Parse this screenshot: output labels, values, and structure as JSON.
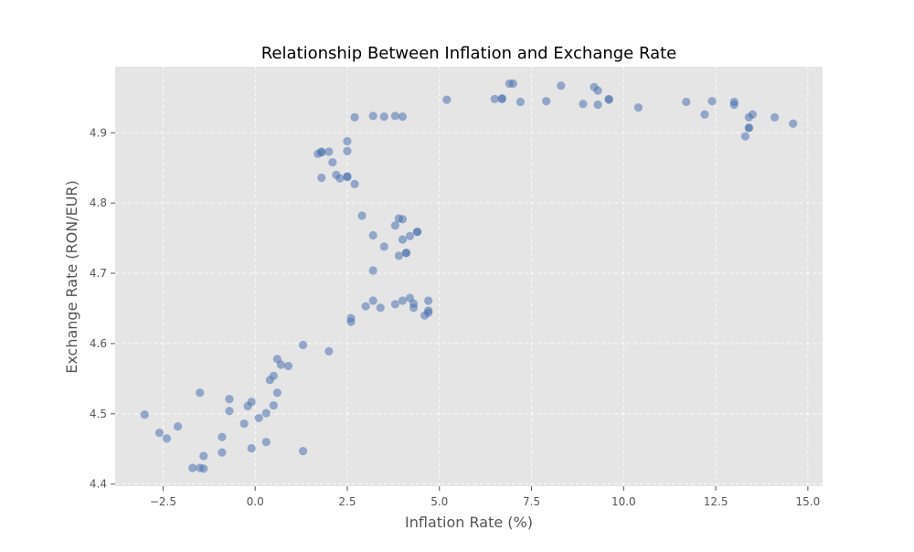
{
  "chart_data": {
    "type": "scatter",
    "title": "Relationship Between Inflation and Exchange Rate",
    "xlabel": "Inflation Rate (%)",
    "ylabel": "Exchange Rate (RON/EUR)",
    "xlim": [
      -3.8,
      15.4
    ],
    "ylim": [
      4.397,
      4.994
    ],
    "xticks": [
      -2.5,
      0.0,
      2.5,
      5.0,
      7.5,
      10.0,
      12.5,
      15.0
    ],
    "xtick_labels": [
      "−2.5",
      "0.0",
      "2.5",
      "5.0",
      "7.5",
      "10.0",
      "12.5",
      "15.0"
    ],
    "yticks": [
      4.4,
      4.5,
      4.6,
      4.7,
      4.8,
      4.9
    ],
    "ytick_labels": [
      "4.4",
      "4.5",
      "4.6",
      "4.7",
      "4.8",
      "4.9"
    ],
    "grid": true,
    "colors": {
      "point": "#4c72b0",
      "plot_bg": "#e5e5e5",
      "grid": "#ffffff",
      "text": "#555555",
      "title": "#000000"
    },
    "points": [
      [
        -3.0,
        4.499
      ],
      [
        -2.6,
        4.473
      ],
      [
        -2.4,
        4.465
      ],
      [
        -2.1,
        4.482
      ],
      [
        -1.7,
        4.423
      ],
      [
        -1.5,
        4.53
      ],
      [
        -1.5,
        4.423
      ],
      [
        -1.4,
        4.44
      ],
      [
        -1.4,
        4.422
      ],
      [
        -0.9,
        4.467
      ],
      [
        -0.9,
        4.445
      ],
      [
        -0.7,
        4.521
      ],
      [
        -0.7,
        4.504
      ],
      [
        -0.3,
        4.486
      ],
      [
        -0.2,
        4.511
      ],
      [
        -0.1,
        4.517
      ],
      [
        -0.1,
        4.451
      ],
      [
        0.1,
        4.494
      ],
      [
        0.3,
        4.501
      ],
      [
        0.3,
        4.46
      ],
      [
        0.4,
        4.548
      ],
      [
        0.5,
        4.554
      ],
      [
        0.5,
        4.512
      ],
      [
        0.6,
        4.53
      ],
      [
        0.6,
        4.578
      ],
      [
        0.7,
        4.57
      ],
      [
        0.9,
        4.568
      ],
      [
        1.3,
        4.598
      ],
      [
        1.3,
        4.447
      ],
      [
        2.0,
        4.589
      ],
      [
        1.7,
        4.87
      ],
      [
        1.8,
        4.873
      ],
      [
        1.8,
        4.872
      ],
      [
        1.8,
        4.836
      ],
      [
        2.0,
        4.873
      ],
      [
        2.1,
        4.858
      ],
      [
        2.2,
        4.84
      ],
      [
        2.3,
        4.835
      ],
      [
        2.5,
        4.888
      ],
      [
        2.5,
        4.874
      ],
      [
        2.5,
        4.838
      ],
      [
        2.5,
        4.837
      ],
      [
        2.7,
        4.827
      ],
      [
        2.7,
        4.922
      ],
      [
        2.9,
        4.782
      ],
      [
        3.2,
        4.924
      ],
      [
        3.5,
        4.923
      ],
      [
        3.8,
        4.924
      ],
      [
        4.0,
        4.923
      ],
      [
        3.2,
        4.754
      ],
      [
        3.2,
        4.704
      ],
      [
        3.5,
        4.738
      ],
      [
        3.8,
        4.768
      ],
      [
        3.9,
        4.778
      ],
      [
        3.9,
        4.725
      ],
      [
        4.0,
        4.777
      ],
      [
        4.0,
        4.748
      ],
      [
        4.1,
        4.729
      ],
      [
        4.1,
        4.729
      ],
      [
        4.2,
        4.753
      ],
      [
        4.4,
        4.759
      ],
      [
        4.4,
        4.759
      ],
      [
        2.6,
        4.636
      ],
      [
        2.6,
        4.631
      ],
      [
        3.0,
        4.653
      ],
      [
        3.2,
        4.661
      ],
      [
        3.4,
        4.651
      ],
      [
        3.8,
        4.656
      ],
      [
        4.0,
        4.661
      ],
      [
        4.2,
        4.665
      ],
      [
        4.3,
        4.657
      ],
      [
        4.3,
        4.651
      ],
      [
        4.6,
        4.64
      ],
      [
        4.7,
        4.661
      ],
      [
        4.7,
        4.647
      ],
      [
        4.7,
        4.644
      ],
      [
        5.2,
        4.947
      ],
      [
        6.5,
        4.948
      ],
      [
        6.7,
        4.949
      ],
      [
        6.7,
        4.948
      ],
      [
        6.9,
        4.97
      ],
      [
        7.0,
        4.97
      ],
      [
        7.2,
        4.944
      ],
      [
        7.9,
        4.945
      ],
      [
        8.3,
        4.967
      ],
      [
        8.9,
        4.941
      ],
      [
        9.2,
        4.965
      ],
      [
        9.3,
        4.96
      ],
      [
        9.3,
        4.94
      ],
      [
        9.6,
        4.948
      ],
      [
        9.6,
        4.947
      ],
      [
        10.4,
        4.936
      ],
      [
        11.7,
        4.944
      ],
      [
        12.2,
        4.926
      ],
      [
        12.4,
        4.945
      ],
      [
        13.0,
        4.944
      ],
      [
        13.0,
        4.94
      ],
      [
        13.3,
        4.895
      ],
      [
        13.4,
        4.922
      ],
      [
        13.4,
        4.907
      ],
      [
        13.4,
        4.907
      ],
      [
        13.5,
        4.926
      ],
      [
        14.1,
        4.922
      ],
      [
        14.6,
        4.913
      ]
    ]
  }
}
